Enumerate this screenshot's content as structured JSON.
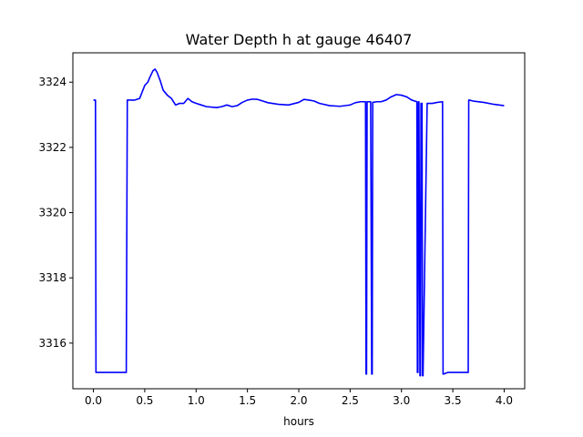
{
  "chart_data": {
    "type": "line",
    "title": "Water Depth h at gauge 46407",
    "xlabel": "hours",
    "ylabel": "",
    "xlim": [
      -0.2,
      4.2
    ],
    "ylim": [
      3314.6,
      3324.9
    ],
    "xticks": [
      0.0,
      0.5,
      1.0,
      1.5,
      2.0,
      2.5,
      3.0,
      3.5,
      4.0
    ],
    "xtick_labels": [
      "0.0",
      "0.5",
      "1.0",
      "1.5",
      "2.0",
      "2.5",
      "3.0",
      "3.5",
      "4.0"
    ],
    "yticks": [
      3316,
      3318,
      3320,
      3322,
      3324
    ],
    "ytick_labels": [
      "3316",
      "3318",
      "3320",
      "3322",
      "3324"
    ],
    "grid": false,
    "series": [
      {
        "color": "#0000ff",
        "x": [
          0.0,
          0.02,
          0.025,
          0.1,
          0.2,
          0.31,
          0.32,
          0.33,
          0.4,
          0.45,
          0.5,
          0.53,
          0.55,
          0.58,
          0.6,
          0.62,
          0.65,
          0.68,
          0.72,
          0.76,
          0.8,
          0.84,
          0.88,
          0.92,
          0.96,
          1.0,
          1.05,
          1.1,
          1.2,
          1.25,
          1.3,
          1.35,
          1.4,
          1.45,
          1.5,
          1.55,
          1.6,
          1.65,
          1.7,
          1.8,
          1.9,
          2.0,
          2.05,
          2.1,
          2.15,
          2.2,
          2.3,
          2.4,
          2.5,
          2.55,
          2.6,
          2.65,
          2.655,
          2.66,
          2.665,
          2.7,
          2.71,
          2.715,
          2.72,
          2.76,
          2.8,
          2.85,
          2.9,
          2.95,
          3.0,
          3.05,
          3.1,
          3.15,
          3.155,
          3.16,
          3.165,
          3.17,
          3.18,
          3.185,
          3.19,
          3.2,
          3.205,
          3.21,
          3.25,
          3.3,
          3.35,
          3.4,
          3.405,
          3.41,
          3.45,
          3.5,
          3.55,
          3.6,
          3.65,
          3.655,
          3.66,
          3.7,
          3.8,
          3.9,
          4.0
        ],
        "y": [
          3323.45,
          3323.45,
          3315.1,
          3315.1,
          3315.1,
          3315.1,
          3315.1,
          3323.45,
          3323.45,
          3323.5,
          3323.9,
          3324.0,
          3324.15,
          3324.35,
          3324.4,
          3324.3,
          3324.05,
          3323.75,
          3323.6,
          3323.5,
          3323.3,
          3323.35,
          3323.35,
          3323.5,
          3323.4,
          3323.35,
          3323.3,
          3323.25,
          3323.22,
          3323.25,
          3323.3,
          3323.25,
          3323.28,
          3323.38,
          3323.45,
          3323.48,
          3323.47,
          3323.42,
          3323.37,
          3323.32,
          3323.3,
          3323.38,
          3323.47,
          3323.45,
          3323.42,
          3323.35,
          3323.28,
          3323.26,
          3323.3,
          3323.37,
          3323.4,
          3323.4,
          3315.05,
          3315.05,
          3323.4,
          3323.4,
          3315.05,
          3315.05,
          3323.38,
          3323.4,
          3323.4,
          3323.45,
          3323.55,
          3323.62,
          3323.6,
          3323.55,
          3323.45,
          3323.4,
          3315.1,
          3315.1,
          3323.4,
          3323.4,
          3315.0,
          3315.0,
          3323.35,
          3323.35,
          3315.0,
          3315.0,
          3323.35,
          3323.35,
          3323.38,
          3323.4,
          3315.05,
          3315.05,
          3315.1,
          3315.1,
          3315.1,
          3315.1,
          3315.1,
          3323.45,
          3323.45,
          3323.42,
          3323.38,
          3323.32,
          3323.28
        ]
      }
    ]
  }
}
